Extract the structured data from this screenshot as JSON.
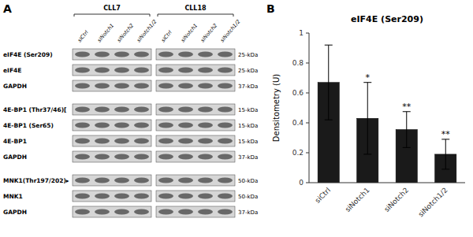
{
  "chart_data": {
    "type": "bar",
    "title": "eIF4E (Ser209)",
    "ylabel": "Densitometry (U)",
    "categories": [
      "siCtrl",
      "siNotch1",
      "siNotch2",
      "siNotch1/2"
    ],
    "values": [
      0.67,
      0.43,
      0.355,
      0.19
    ],
    "errors": [
      0.25,
      0.24,
      0.12,
      0.1
    ],
    "significance": [
      null,
      "*",
      "**",
      "**"
    ],
    "color": "#1a1a1a",
    "ylim": [
      0,
      1.0
    ],
    "yticks": [
      0,
      0.2,
      0.4,
      0.6,
      0.8,
      1.0
    ],
    "grid": false,
    "panel_labels": [
      "A",
      "B"
    ],
    "blot": {
      "columns": [
        "CLL7",
        "CLL18"
      ],
      "lanes": [
        "siCtrl",
        "siNotch1",
        "siNotch2",
        "siNotch1/2"
      ],
      "rows": [
        "eIF4E (Ser209)",
        "eIF4E",
        "GAPDH",
        "4E-BP1 (Thr37/46)[",
        "4E-BP1 (Ser65)",
        "4E-BP1",
        "GAPDH",
        "MNK1(Thr197/202)▸",
        "MNK1",
        "GAPDH"
      ],
      "kda": [
        "25-kDa",
        "25-kDa",
        "37-kDa",
        "15-kDa",
        "15-kDa",
        "15-kDa",
        "37-kDa",
        "50-kDa",
        "50-kDa",
        "37-kDa"
      ]
    }
  }
}
